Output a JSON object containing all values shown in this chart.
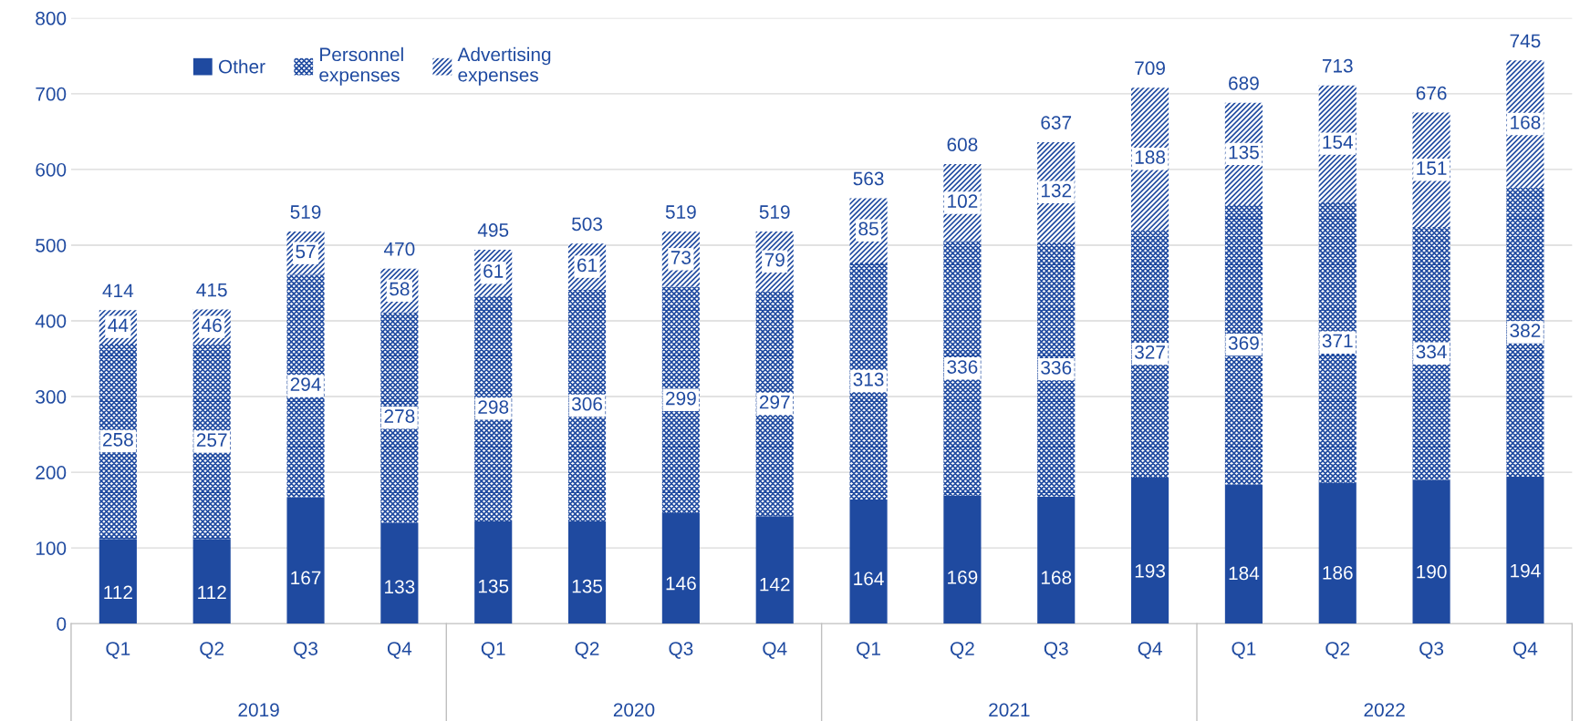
{
  "chart_data": {
    "type": "bar",
    "stacked": true,
    "categories": [
      "Q1",
      "Q2",
      "Q3",
      "Q4",
      "Q1",
      "Q2",
      "Q3",
      "Q4",
      "Q1",
      "Q2",
      "Q3",
      "Q4",
      "Q1",
      "Q2",
      "Q3",
      "Q4"
    ],
    "series": [
      {
        "name": "Other",
        "color": "#1f4aa0",
        "values": [
          112,
          112,
          167,
          133,
          135,
          135,
          146,
          142,
          164,
          169,
          168,
          193,
          184,
          186,
          190,
          194
        ]
      },
      {
        "name": "Personnel\nexpenses",
        "color": "#1f4aa0",
        "values": [
          258,
          257,
          294,
          278,
          298,
          306,
          299,
          297,
          313,
          336,
          336,
          327,
          369,
          371,
          334,
          382
        ]
      },
      {
        "name": "Advertising\nexpenses",
        "color": "#1f4aa0",
        "values": [
          44,
          46,
          57,
          58,
          61,
          61,
          73,
          79,
          85,
          102,
          132,
          188,
          135,
          154,
          151,
          168
        ]
      }
    ],
    "totals": [
      "414",
      "415",
      "519",
      "470",
      "495",
      "503",
      "519",
      "519",
      "563",
      "608",
      "637",
      "709",
      "689",
      "713",
      "676",
      "745"
    ],
    "annotations": [
      "2019",
      "2020",
      "2021",
      "2022"
    ],
    "data_labels": true,
    "ylim": [
      0,
      800
    ],
    "yticks": [
      0,
      100,
      200,
      300,
      400,
      500,
      600,
      700,
      800
    ],
    "grid": "y",
    "legend": "top left"
  }
}
